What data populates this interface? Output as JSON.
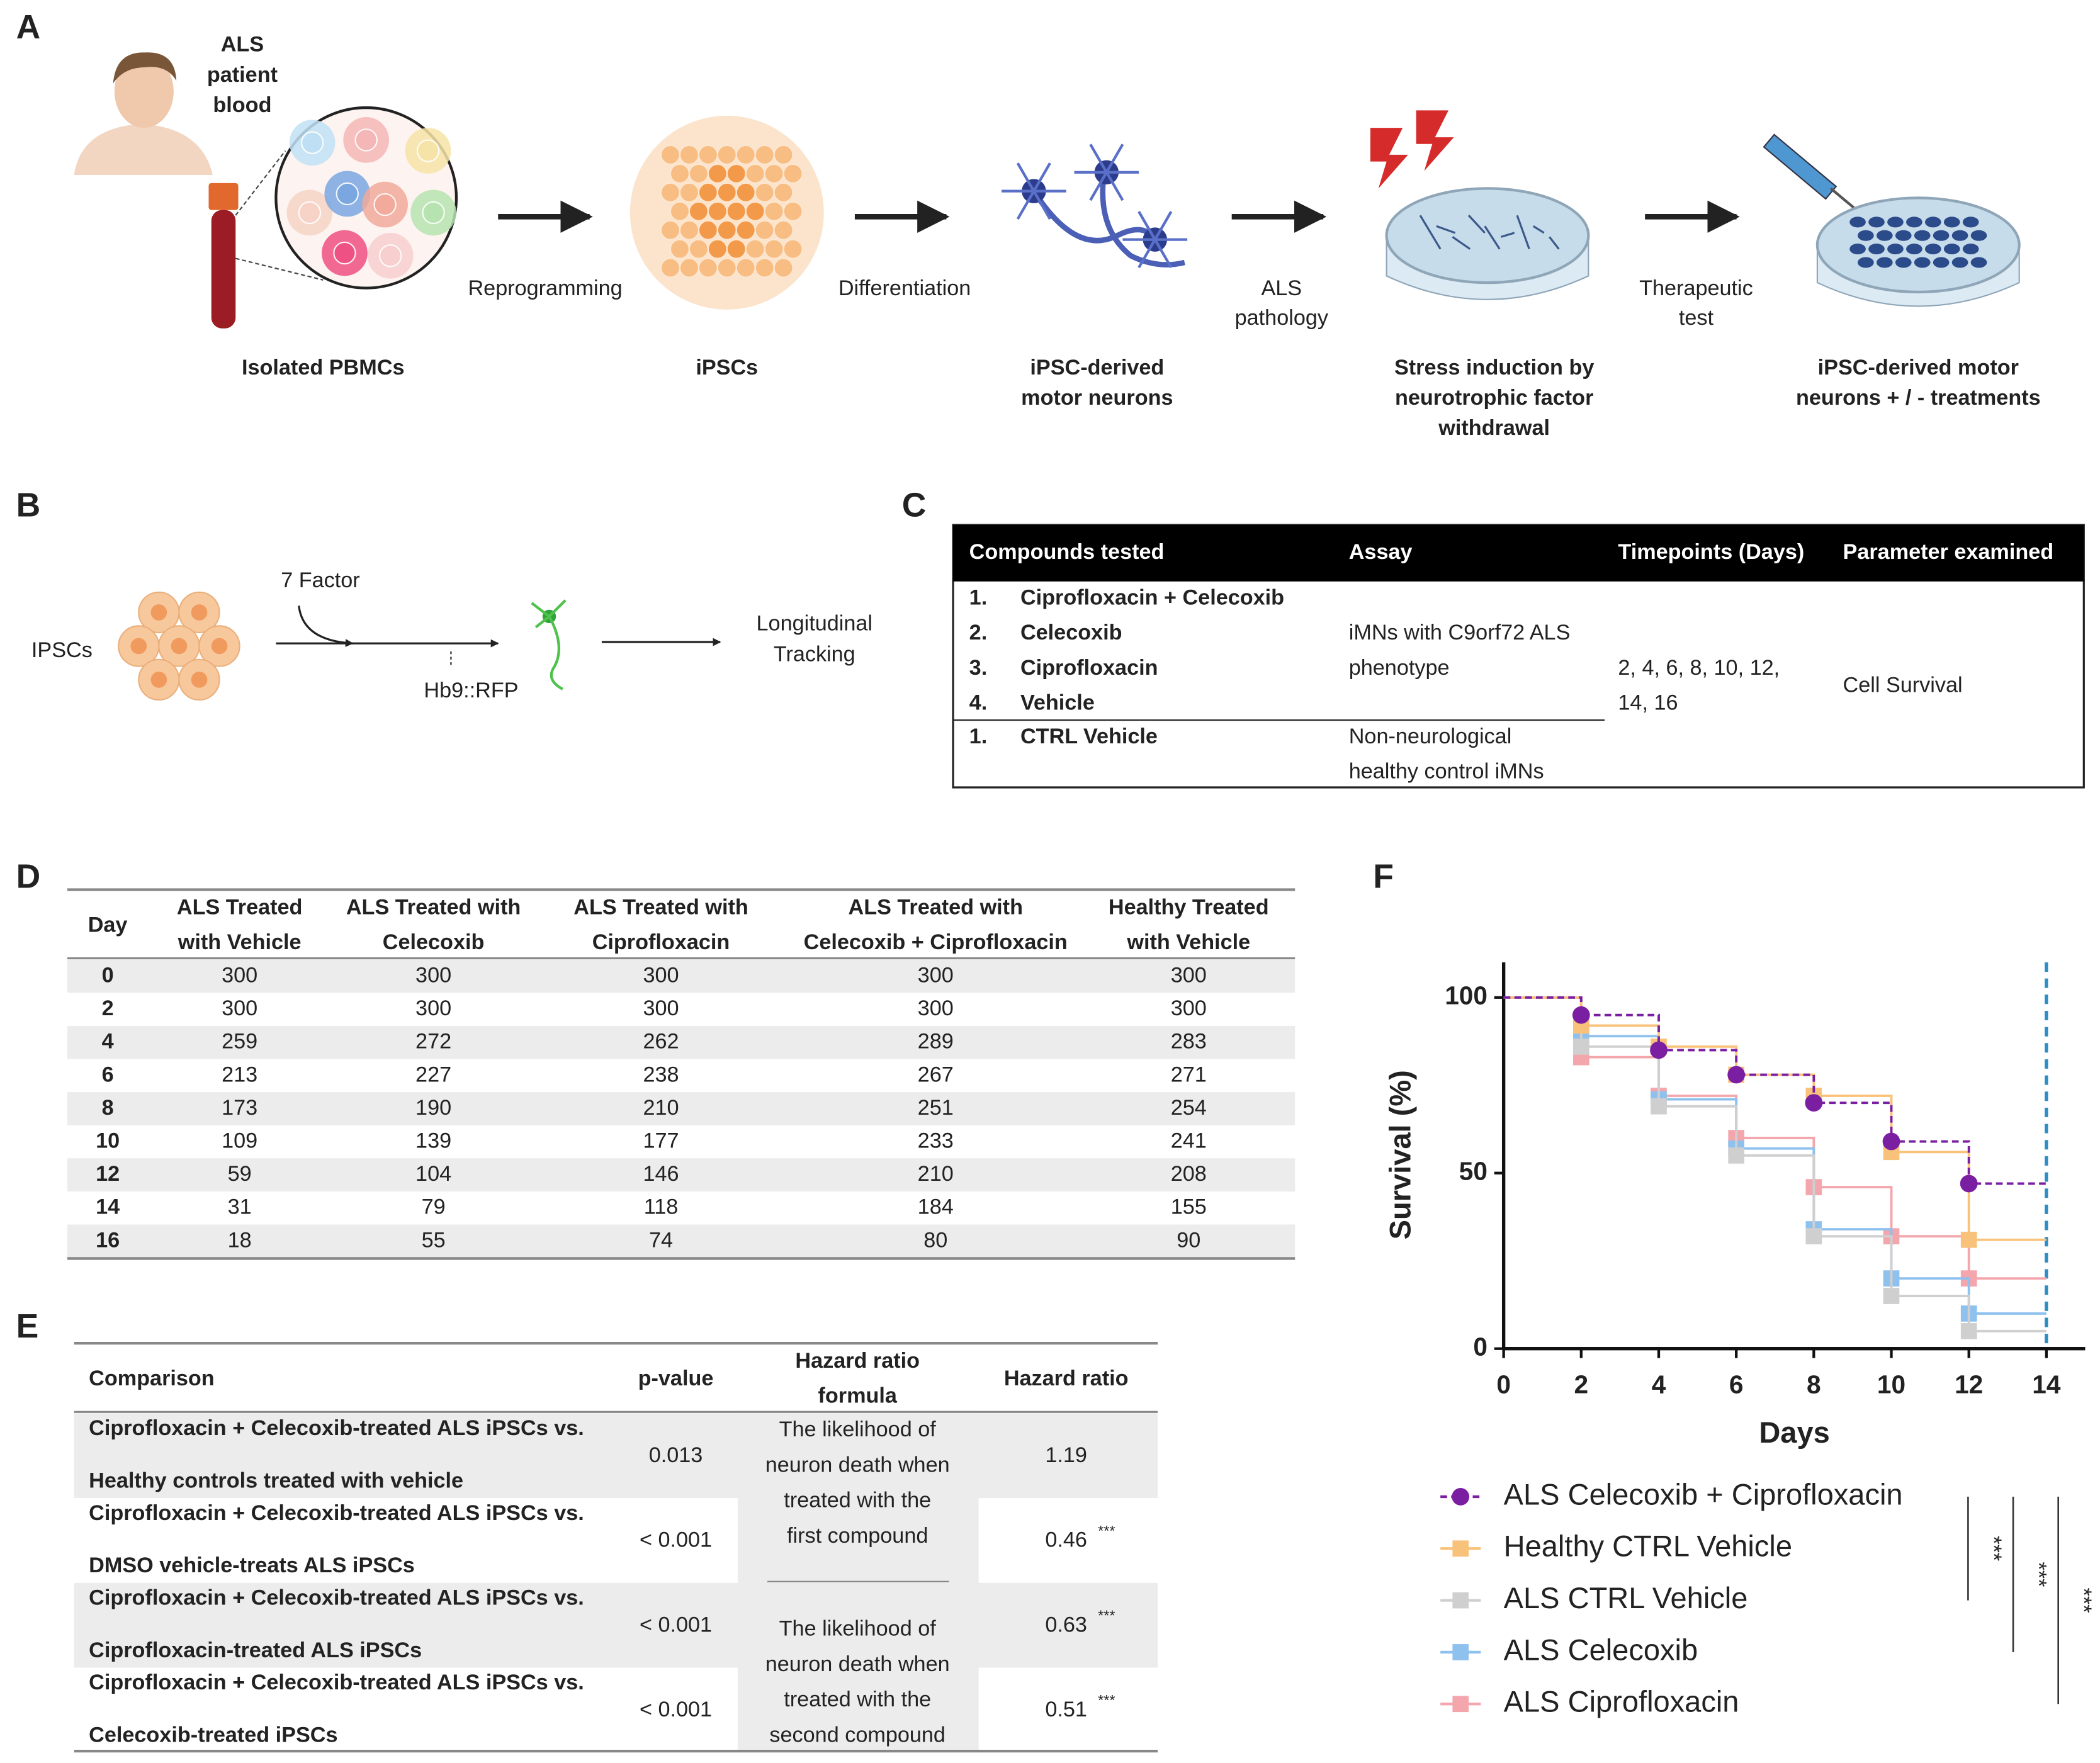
{
  "panel_labels": [
    "A",
    "B",
    "C",
    "D",
    "E",
    "F"
  ],
  "panel_a": {
    "patient_label": [
      "ALS",
      "patient",
      "blood"
    ],
    "step_labels": [
      [
        "Reprogramming"
      ],
      [
        "Differentiation"
      ],
      [
        "ALS",
        "pathology"
      ],
      [
        "Therapeutic",
        "test"
      ]
    ],
    "captions": [
      [
        "Isolated PBMCs"
      ],
      [
        "iPSCs"
      ],
      [
        "iPSC-derived",
        "motor neurons"
      ],
      [
        "Stress induction by",
        "neurotrophic factor",
        "withdrawal"
      ],
      [
        "iPSC-derived motor",
        "neurons + / - treatments"
      ]
    ]
  },
  "panel_b": {
    "start": "IPSCs",
    "factor": "7 Factor",
    "reporter": "Hb9::RFP",
    "end": [
      "Longitudinal",
      "Tracking"
    ]
  },
  "panel_c": {
    "header": [
      "Compounds tested",
      "Assay",
      "Timepoints (Days)",
      "Parameter examined"
    ],
    "als_compounds": [
      {
        "num": "1.",
        "name": "Ciprofloxacin + Celecoxib"
      },
      {
        "num": "2.",
        "name": "Celecoxib"
      },
      {
        "num": "3.",
        "name": "Ciprofloxacin"
      },
      {
        "num": "4.",
        "name": "Vehicle"
      }
    ],
    "als_assay": [
      "iMNs with C9orf72 ALS",
      "phenotype"
    ],
    "control_compounds": [
      {
        "num": "1.",
        "name": "CTRL Vehicle"
      }
    ],
    "control_assay": [
      "Non-neurological",
      "healthy control iMNs"
    ],
    "timepoints": [
      "2, 4, 6, 8, 10, 12,",
      "14, 16"
    ],
    "parameter": "Cell Survival"
  },
  "panel_d": {
    "header": [
      [
        "Day"
      ],
      [
        "ALS Treated",
        "with Vehicle"
      ],
      [
        "ALS Treated with",
        "Celecoxib"
      ],
      [
        "ALS Treated with",
        "Ciprofloxacin"
      ],
      [
        "ALS Treated with",
        "Celecoxib + Ciprofloxacin"
      ],
      [
        "Healthy Treated",
        "with Vehicle"
      ]
    ],
    "rows": [
      [
        0,
        300,
        300,
        300,
        300,
        300
      ],
      [
        2,
        300,
        300,
        300,
        300,
        300
      ],
      [
        4,
        259,
        272,
        262,
        289,
        283
      ],
      [
        6,
        213,
        227,
        238,
        267,
        271
      ],
      [
        8,
        173,
        190,
        210,
        251,
        254
      ],
      [
        10,
        109,
        139,
        177,
        233,
        241
      ],
      [
        12,
        59,
        104,
        146,
        210,
        208
      ],
      [
        14,
        31,
        79,
        118,
        184,
        155
      ],
      [
        16,
        18,
        55,
        74,
        80,
        90
      ]
    ]
  },
  "panel_e": {
    "header": [
      [
        "Comparison"
      ],
      [
        "p-value"
      ],
      [
        "Hazard ratio",
        "formula"
      ],
      [
        "Hazard ratio"
      ]
    ],
    "rows": [
      {
        "comparison": [
          "Ciprofloxacin + Celecoxib-treated ALS iPSCs vs.",
          "Healthy controls treated with vehicle"
        ],
        "p_value": "0.013",
        "hazard_ratio": 1.19
      },
      {
        "comparison": [
          "Ciprofloxacin + Celecoxib-treated ALS iPSCs vs.",
          "DMSO vehicle-treats ALS iPSCs"
        ],
        "p_value": "< 0.001",
        "hazard_ratio": 0.46,
        "significance": "***"
      },
      {
        "comparison": [
          "Ciprofloxacin + Celecoxib-treated ALS iPSCs  vs.",
          "Ciprofloxacin-treated ALS iPSCs"
        ],
        "p_value": "< 0.001",
        "hazard_ratio": 0.63,
        "significance": "***"
      },
      {
        "comparison": [
          "Ciprofloxacin + Celecoxib-treated ALS iPSCs  vs.",
          "Celecoxib-treated iPSCs"
        ],
        "p_value": "< 0.001",
        "hazard_ratio": 0.51,
        "significance": "***"
      }
    ],
    "formulas": [
      [
        "The likelihood of",
        "neuron death when",
        "treated with the",
        "first compound"
      ],
      [
        "The likelihood of",
        "neuron death when",
        "treated with the",
        "second compound"
      ]
    ]
  },
  "chart_data": {
    "type": "line",
    "step": true,
    "xlabel": "Days",
    "ylabel": "Survival (%)",
    "x": [
      0,
      2,
      4,
      6,
      8,
      10,
      12,
      14
    ],
    "xlim": [
      0,
      15
    ],
    "ylim": [
      0,
      110
    ],
    "xticks": [
      0,
      2,
      4,
      6,
      8,
      10,
      12,
      14
    ],
    "yticks": [
      0,
      50,
      100
    ],
    "vline": 14,
    "vline_color": "#2b8cc4",
    "series": [
      {
        "name": "ALS Celecoxib + Ciprofloxacin",
        "color": "#7b1fa2",
        "marker": "circle",
        "dashed": true,
        "values": [
          100,
          95,
          85,
          78,
          70,
          59,
          47,
          47
        ]
      },
      {
        "name": "Healthy CTRL Vehicle",
        "color": "#f9c27a",
        "marker": "square",
        "dashed": false,
        "values": [
          100,
          92,
          86,
          78,
          72,
          56,
          31,
          31
        ]
      },
      {
        "name": "ALS CTRL Vehicle",
        "color": "#cfcfcf",
        "marker": "square",
        "dashed": false,
        "values": [
          100,
          86,
          69,
          55,
          32,
          15,
          5,
          5
        ]
      },
      {
        "name": "ALS Celecoxib",
        "color": "#8fc1ee",
        "marker": "square",
        "dashed": false,
        "values": [
          100,
          89,
          71,
          57,
          34,
          20,
          10,
          10
        ]
      },
      {
        "name": "ALS Ciprofloxacin",
        "color": "#f4a6ad",
        "marker": "square",
        "dashed": false,
        "values": [
          100,
          83,
          72,
          60,
          46,
          32,
          20,
          20
        ]
      }
    ],
    "significance": [
      "***",
      "***",
      "***"
    ]
  }
}
